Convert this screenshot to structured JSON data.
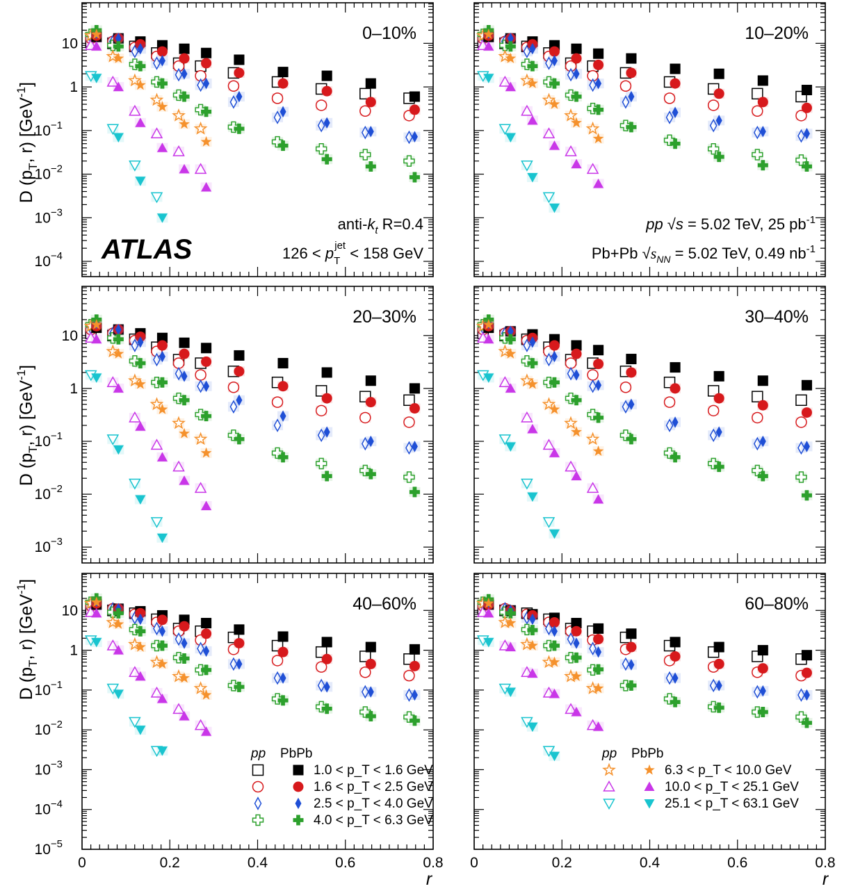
{
  "chart_data": {
    "type": "scatter",
    "xlabel": "r",
    "ylabel": "D (p_T, r) [GeV^-1]",
    "x_scale": "linear",
    "y_scale": "log",
    "xlim": [
      0,
      0.8
    ],
    "x_ticks": [
      "0",
      "0.2",
      "0.4",
      "0.6",
      "0.8"
    ],
    "y_tick_labels": [
      "10",
      "1",
      "10^-1",
      "10^-2",
      "10^-3",
      "10^-4",
      "10^-5"
    ],
    "brand": "ATLAS",
    "annotations": {
      "jet_algo": "anti-k_t R=0.4",
      "jet_pt": "126 < p_T^jet < 158 GeV",
      "pp_lumi": "pp √s = 5.02 TeV, 25 pb^-1",
      "pbpb_lumi": "Pb+Pb √s_NN = 5.02 TeV, 0.49 nb^-1"
    },
    "legend": {
      "header_pp": "pp",
      "header_pbpb": "PbPb",
      "left_entries": [
        "1.0 < p_T < 1.6 GeV",
        "1.6 < p_T < 2.5 GeV",
        "2.5 < p_T < 4.0 GeV",
        "4.0 < p_T < 6.3 GeV"
      ],
      "right_entries": [
        "6.3 < p_T < 10.0 GeV",
        "10.0 < p_T < 25.1 GeV",
        "25.1 < p_T < 63.1 GeV"
      ]
    },
    "colors": {
      "pt1": "#000000",
      "pt2": "#d7191c",
      "pt3": "#1f4fd6",
      "pt4": "#2ca02c",
      "pt5": "#f5912c",
      "pt6": "#c936e8",
      "pt7": "#19c4cf"
    },
    "pt_bins": [
      "1.0-1.6",
      "1.6-2.5",
      "2.5-4.0",
      "4.0-6.3",
      "6.3-10.0",
      "10.0-25.1",
      "25.1-63.1"
    ],
    "r_points": [
      0.025,
      0.075,
      0.125,
      0.175,
      0.225,
      0.275,
      0.35,
      0.45,
      0.55,
      0.65,
      0.75
    ],
    "panels": [
      {
        "centrality": "0–10%",
        "pp": [
          [
            11,
            10,
            8.5,
            6,
            3.5,
            3,
            2.1,
            1.3,
            0.9,
            0.7,
            0.55
          ],
          [
            13,
            11,
            8,
            5,
            3,
            1.8,
            1.05,
            0.55,
            0.38,
            0.28,
            0.22
          ],
          [
            14,
            11,
            6.5,
            3.5,
            1.9,
            1.1,
            0.45,
            0.2,
            0.13,
            0.09,
            0.07
          ],
          [
            16,
            9,
            3.3,
            1.3,
            0.65,
            0.3,
            0.12,
            0.055,
            0.038,
            0.028,
            0.02
          ],
          [
            15,
            5,
            1.4,
            0.5,
            0.22,
            0.11
          ],
          [
            9,
            1.3,
            0.28,
            0.085,
            0.033,
            0.013
          ],
          [
            1.8,
            0.11,
            0.016,
            0.003
          ]
        ],
        "pbpb": [
          [
            14,
            13,
            11,
            9,
            7.5,
            6,
            4.2,
            2.2,
            1.8,
            1.2,
            0.6
          ],
          [
            15,
            13,
            9.5,
            6.5,
            4.5,
            3.5,
            2.1,
            1.2,
            0.8,
            0.45,
            0.3
          ],
          [
            17,
            13,
            7.5,
            4,
            2,
            1.2,
            0.6,
            0.27,
            0.15,
            0.095,
            0.072
          ],
          [
            20,
            8.5,
            3,
            1.2,
            0.6,
            0.27,
            0.11,
            0.045,
            0.022,
            0.015,
            0.0085
          ],
          [
            16,
            4.5,
            1.1,
            0.35,
            0.14,
            0.055
          ],
          [
            8.5,
            1,
            0.15,
            0.04,
            0.013,
            0.005
          ],
          [
            1.6,
            0.07,
            0.007,
            0.001
          ]
        ]
      },
      {
        "centrality": "10–20%",
        "pp": [
          [
            11,
            10,
            8.5,
            6,
            3.5,
            3,
            2.1,
            1.3,
            0.9,
            0.7,
            0.6
          ],
          [
            13,
            11,
            8,
            5,
            3,
            1.8,
            1.05,
            0.55,
            0.38,
            0.28,
            0.22
          ],
          [
            14,
            11,
            6.5,
            3.5,
            1.9,
            1.1,
            0.45,
            0.2,
            0.13,
            0.09,
            0.075
          ],
          [
            16,
            9,
            3.3,
            1.3,
            0.65,
            0.32,
            0.13,
            0.06,
            0.038,
            0.028,
            0.021
          ],
          [
            15,
            5,
            1.4,
            0.5,
            0.22,
            0.11
          ],
          [
            9,
            1.3,
            0.28,
            0.085,
            0.033,
            0.013
          ],
          [
            1.8,
            0.11,
            0.016,
            0.003
          ]
        ],
        "pbpb": [
          [
            14,
            13,
            11,
            9,
            7.5,
            5.8,
            4.5,
            2.6,
            2,
            1.4,
            0.85
          ],
          [
            15,
            13,
            9.5,
            6.5,
            4.5,
            3.2,
            2.1,
            1.2,
            0.7,
            0.45,
            0.33
          ],
          [
            17,
            13,
            7.5,
            4,
            2,
            1.2,
            0.6,
            0.26,
            0.17,
            0.095,
            0.085
          ],
          [
            20,
            8.5,
            3,
            1.2,
            0.6,
            0.3,
            0.12,
            0.05,
            0.025,
            0.016,
            0.015
          ],
          [
            16,
            4.5,
            1.2,
            0.4,
            0.15,
            0.065
          ],
          [
            8.5,
            1,
            0.17,
            0.045,
            0.017,
            0.006
          ],
          [
            1.6,
            0.07,
            0.0085,
            0.0017
          ]
        ]
      },
      {
        "centrality": "20–30%",
        "pp": [
          [
            11,
            10,
            8.5,
            6,
            3.5,
            3,
            2.1,
            1.3,
            0.9,
            0.7,
            0.6
          ],
          [
            13,
            11,
            8,
            5,
            3,
            1.8,
            1.05,
            0.55,
            0.38,
            0.28,
            0.23
          ],
          [
            14,
            11,
            6.5,
            3.5,
            1.9,
            1.1,
            0.45,
            0.2,
            0.13,
            0.09,
            0.075
          ],
          [
            16,
            9,
            3.3,
            1.3,
            0.65,
            0.32,
            0.13,
            0.06,
            0.038,
            0.028,
            0.021
          ],
          [
            15,
            5,
            1.4,
            0.5,
            0.22,
            0.11
          ],
          [
            9,
            1.3,
            0.28,
            0.085,
            0.033,
            0.013
          ],
          [
            1.8,
            0.11,
            0.016,
            0.003
          ]
        ],
        "pbpb": [
          [
            14,
            13,
            11,
            9,
            7.3,
            5.8,
            4.2,
            3,
            2,
            1.4,
            1
          ],
          [
            15,
            13,
            9.5,
            6.5,
            4.5,
            3.2,
            2.1,
            1.1,
            0.65,
            0.55,
            0.42
          ],
          [
            17,
            13,
            7.5,
            4,
            1.7,
            1.1,
            0.6,
            0.3,
            0.15,
            0.1,
            0.08
          ],
          [
            20,
            8.5,
            3,
            1.3,
            0.6,
            0.3,
            0.11,
            0.05,
            0.022,
            0.024,
            0.011
          ],
          [
            16,
            4.5,
            1.2,
            0.4,
            0.14,
            0.06
          ],
          [
            8.5,
            1,
            0.19,
            0.05,
            0.018,
            0.006
          ],
          [
            1.6,
            0.07,
            0.008,
            0.0015
          ]
        ]
      },
      {
        "centrality": "30–40%",
        "pp": [
          [
            11,
            10,
            8.5,
            6,
            3.5,
            3,
            2.1,
            1.3,
            0.9,
            0.7,
            0.6
          ],
          [
            13,
            11,
            8,
            5,
            3,
            1.8,
            1.05,
            0.55,
            0.38,
            0.28,
            0.23
          ],
          [
            14,
            11,
            6.5,
            3.5,
            1.9,
            1.1,
            0.45,
            0.2,
            0.13,
            0.09,
            0.075
          ],
          [
            16,
            9,
            3.3,
            1.3,
            0.65,
            0.32,
            0.13,
            0.06,
            0.038,
            0.028,
            0.021
          ],
          [
            15,
            5,
            1.4,
            0.5,
            0.22,
            0.11
          ],
          [
            9,
            1.3,
            0.28,
            0.085,
            0.033,
            0.013
          ],
          [
            1.8,
            0.11,
            0.016,
            0.003
          ]
        ],
        "pbpb": [
          [
            14,
            12,
            10.5,
            8.5,
            6.5,
            5.3,
            3.6,
            2.5,
            1.7,
            1.4,
            1.15
          ],
          [
            15,
            12,
            9,
            6.5,
            4.5,
            2.9,
            2,
            1,
            0.65,
            0.48,
            0.35
          ],
          [
            17,
            12,
            7.5,
            4,
            1.8,
            1.15,
            0.5,
            0.23,
            0.15,
            0.1,
            0.08
          ],
          [
            20,
            8.5,
            3,
            1.3,
            0.6,
            0.28,
            0.11,
            0.05,
            0.033,
            0.022,
            0.0095
          ],
          [
            16,
            4.5,
            1.2,
            0.4,
            0.15,
            0.065
          ],
          [
            8.5,
            1,
            0.17,
            0.06,
            0.022,
            0.008
          ],
          [
            1.6,
            0.08,
            0.009,
            0.0018
          ]
        ]
      },
      {
        "centrality": "40–60%",
        "pp": [
          [
            11,
            10,
            8.5,
            6,
            3.5,
            3,
            2.1,
            1.3,
            0.9,
            0.7,
            0.6
          ],
          [
            13,
            11,
            8,
            5,
            3,
            1.8,
            1.05,
            0.55,
            0.38,
            0.28,
            0.23
          ],
          [
            14,
            11,
            6.5,
            3.5,
            1.9,
            1.1,
            0.45,
            0.2,
            0.13,
            0.09,
            0.075
          ],
          [
            16,
            9,
            3.3,
            1.3,
            0.65,
            0.32,
            0.13,
            0.06,
            0.038,
            0.028,
            0.021
          ],
          [
            15,
            5,
            1.4,
            0.5,
            0.22,
            0.11
          ],
          [
            9,
            1.3,
            0.28,
            0.085,
            0.033,
            0.013
          ],
          [
            1.8,
            0.11,
            0.016,
            0.003
          ]
        ],
        "pbpb": [
          [
            14,
            11,
            9.5,
            7.5,
            5.8,
            4.8,
            3.3,
            2.2,
            1.6,
            1.2,
            1.05
          ],
          [
            15,
            11,
            8.5,
            5.8,
            4,
            2.6,
            1.5,
            0.9,
            0.6,
            0.45,
            0.4
          ],
          [
            17,
            11,
            6,
            3,
            1.5,
            0.95,
            0.45,
            0.2,
            0.12,
            0.09,
            0.075
          ],
          [
            20,
            8.5,
            3,
            1.3,
            0.62,
            0.32,
            0.12,
            0.055,
            0.034,
            0.022,
            0.017
          ],
          [
            16,
            4.5,
            1.2,
            0.45,
            0.2,
            0.075
          ],
          [
            8.5,
            1,
            0.22,
            0.06,
            0.022,
            0.009
          ],
          [
            1.6,
            0.08,
            0.01,
            0.003
          ]
        ]
      },
      {
        "centrality": "60–80%",
        "pp": [
          [
            11,
            10,
            8.5,
            6,
            3.5,
            3,
            2.1,
            1.3,
            0.9,
            0.7,
            0.6
          ],
          [
            13,
            11,
            8,
            5,
            3,
            1.8,
            1.05,
            0.55,
            0.38,
            0.28,
            0.23
          ],
          [
            14,
            11,
            6.5,
            3.5,
            1.9,
            1.1,
            0.45,
            0.2,
            0.13,
            0.09,
            0.075
          ],
          [
            16,
            9,
            3.3,
            1.3,
            0.65,
            0.32,
            0.13,
            0.06,
            0.038,
            0.028,
            0.021
          ],
          [
            15,
            5,
            1.4,
            0.5,
            0.22,
            0.11
          ],
          [
            9,
            1.3,
            0.28,
            0.085,
            0.033,
            0.013
          ],
          [
            1.8,
            0.11,
            0.016,
            0.003
          ]
        ],
        "pbpb": [
          [
            14,
            10,
            8,
            6.5,
            4.8,
            3.5,
            2.6,
            1.6,
            1.2,
            1,
            0.75
          ],
          [
            14,
            10,
            7.5,
            5,
            3,
            1.9,
            1.2,
            0.7,
            0.45,
            0.35,
            0.27
          ],
          [
            16,
            10,
            6,
            3,
            1.5,
            0.9,
            0.43,
            0.2,
            0.13,
            0.095,
            0.075
          ],
          [
            19,
            8.5,
            3.2,
            1.3,
            0.65,
            0.33,
            0.13,
            0.05,
            0.036,
            0.028,
            0.015
          ],
          [
            15,
            4.8,
            1.3,
            0.5,
            0.22,
            0.11
          ],
          [
            8.5,
            1.2,
            0.26,
            0.08,
            0.028,
            0.012
          ],
          [
            1.6,
            0.09,
            0.012,
            0.0022
          ]
        ]
      }
    ]
  }
}
